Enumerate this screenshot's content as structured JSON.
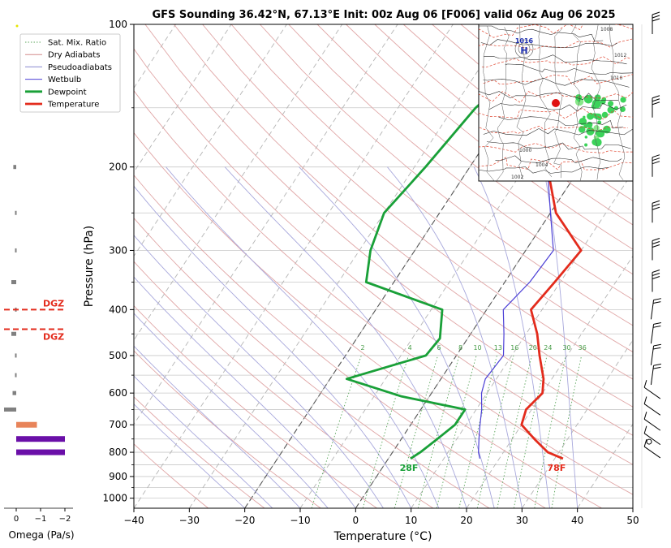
{
  "chart_data": {
    "type": "line",
    "title": "GFS Sounding 36.42°N, 67.13°E Init: 00z Aug 06 [F006] valid 06z Aug 06 2025",
    "xlabel": "Temperature (°C)",
    "ylabel": "Pressure (hPa)",
    "xlim": [
      -40,
      50
    ],
    "ylim": [
      1050,
      100
    ],
    "y_scale": "log",
    "skew": "skew-T",
    "grid": true,
    "x_ticks": [
      "−40",
      "−30",
      "−20",
      "−10",
      "0",
      "10",
      "20",
      "30",
      "40",
      "50"
    ],
    "y_ticks": [
      "100",
      "200",
      "300",
      "400",
      "500",
      "600",
      "700",
      "800",
      "900",
      "1000"
    ],
    "legend": {
      "placement": "top-left",
      "entries": [
        {
          "label": "Sat. Mix. Ratio",
          "color": "#5aa55a",
          "style": "dotted"
        },
        {
          "label": "Dry Adiabats",
          "color": "#d48a8a",
          "style": "solid"
        },
        {
          "label": "Pseudoadiabats",
          "color": "#8a8ad0",
          "style": "solid"
        },
        {
          "label": "Wetbulb",
          "color": "#4b3fd6",
          "style": "solid"
        },
        {
          "label": "Dewpoint",
          "color": "#19a038",
          "style": "thick"
        },
        {
          "label": "Temperature",
          "color": "#e32b1c",
          "style": "thick"
        }
      ]
    },
    "series": [
      {
        "name": "Temperature",
        "color": "#e32b1c",
        "points": [
          [
            31.5,
            825
          ],
          [
            28,
            800
          ],
          [
            24,
            750
          ],
          [
            20,
            700
          ],
          [
            19,
            650
          ],
          [
            20,
            600
          ],
          [
            18.5,
            560
          ],
          [
            15,
            500
          ],
          [
            12,
            450
          ],
          [
            8,
            400
          ],
          [
            9,
            350
          ],
          [
            10,
            300
          ],
          [
            1,
            250
          ],
          [
            -6,
            200
          ],
          [
            -16,
            150
          ],
          [
            -23,
            100
          ]
        ]
      },
      {
        "name": "Dewpoint",
        "color": "#19a038",
        "points": [
          [
            4,
            825
          ],
          [
            5,
            800
          ],
          [
            6.5,
            750
          ],
          [
            8,
            700
          ],
          [
            8,
            650
          ],
          [
            -5,
            610
          ],
          [
            -17,
            560
          ],
          [
            -5.5,
            500
          ],
          [
            -5,
            460
          ],
          [
            -8,
            400
          ],
          [
            -25,
            350
          ],
          [
            -28,
            300
          ],
          [
            -30,
            250
          ],
          [
            -28,
            200
          ],
          [
            -26,
            150
          ],
          [
            -19,
            100
          ]
        ]
      },
      {
        "name": "Wetbulb",
        "color": "#4b3fd6",
        "points": [
          [
            16.5,
            825
          ],
          [
            15.5,
            800
          ],
          [
            14,
            750
          ],
          [
            12.5,
            700
          ],
          [
            11,
            650
          ],
          [
            9,
            600
          ],
          [
            8,
            560
          ],
          [
            8.5,
            500
          ],
          [
            6,
            450
          ],
          [
            3,
            400
          ],
          [
            4.5,
            350
          ],
          [
            5,
            300
          ],
          [
            0,
            250
          ],
          [
            -6,
            200
          ],
          [
            -16,
            150
          ],
          [
            -23,
            100
          ]
        ]
      }
    ],
    "labels": {
      "surface_temp": "78F",
      "surface_dew": "28F",
      "dgz_upper": "DGZ",
      "dgz_lower": "DGZ",
      "dgz_pressures": [
        400,
        440
      ]
    },
    "mixing_ratio_labels": [
      "2",
      "4",
      "6",
      "8",
      "10",
      "13",
      "16",
      "20",
      "24",
      "30",
      "36"
    ],
    "omega": {
      "xlabel": "Omega (Pa/s)",
      "ticks": [
        "0",
        "−1",
        "−2"
      ],
      "bars": [
        {
          "p": 200,
          "value": 0.12,
          "color": "#808080"
        },
        {
          "p": 250,
          "value": 0.05,
          "color": "#808080"
        },
        {
          "p": 300,
          "value": 0.05,
          "color": "#808080"
        },
        {
          "p": 350,
          "value": 0.2,
          "color": "#808080"
        },
        {
          "p": 400,
          "value": 0.05,
          "color": "#808080"
        },
        {
          "p": 450,
          "value": 0.2,
          "color": "#808080"
        },
        {
          "p": 500,
          "value": 0.05,
          "color": "#808080"
        },
        {
          "p": 550,
          "value": 0.05,
          "color": "#808080"
        },
        {
          "p": 600,
          "value": 0.15,
          "color": "#808080"
        },
        {
          "p": 650,
          "value": 0.5,
          "color": "#808080"
        },
        {
          "p": 700,
          "value": -0.85,
          "color": "#e8845a"
        },
        {
          "p": 750,
          "value": -2.0,
          "color": "#6a0fa8"
        },
        {
          "p": 800,
          "value": -2.0,
          "color": "#6a0fa8"
        }
      ]
    },
    "wind_barbs": {
      "side": "right",
      "levels_hPa": [
        100,
        150,
        200,
        250,
        300,
        350,
        400,
        450,
        500,
        550,
        600,
        650,
        700,
        750,
        800
      ]
    },
    "inset_map": {
      "pressure_labels": [
        "1016",
        "1008",
        "1012",
        "1010",
        "1004",
        "1000",
        "1002"
      ]
    }
  }
}
